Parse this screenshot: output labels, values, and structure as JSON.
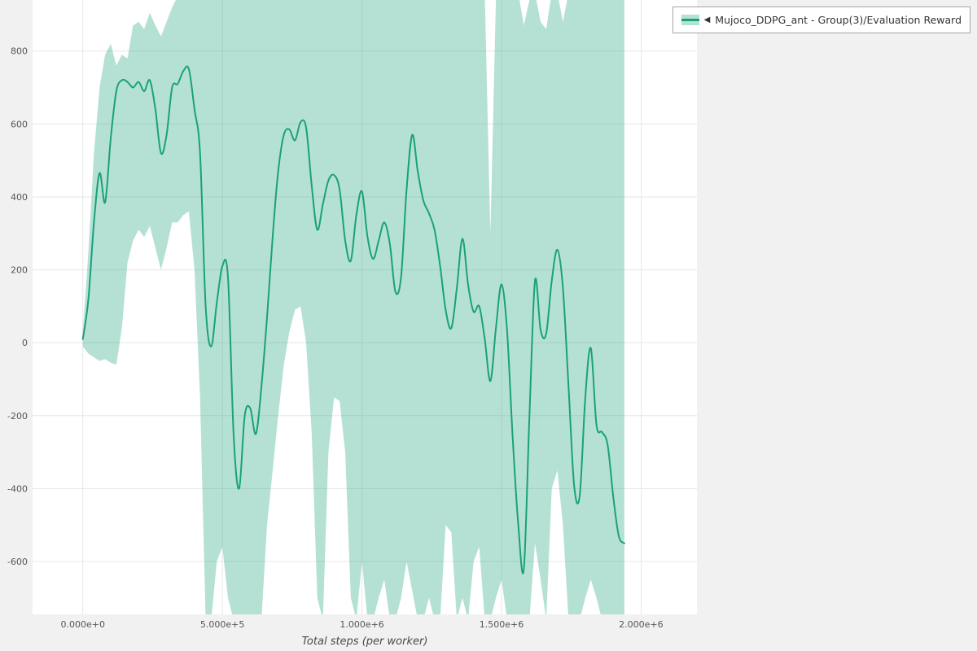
{
  "page": {
    "background": "#f1f1f2"
  },
  "legend": {
    "collapse_icon": "◀",
    "label": "Mujoco_DDPG_ant - Group(3)/Evaluation Reward"
  },
  "chart_data": {
    "type": "line",
    "title": "",
    "xlabel": "Total steps (per worker)",
    "ylabel": "",
    "series_name": "Mujoco_DDPG_ant - Group(3)/Evaluation Reward",
    "x_unit": "steps",
    "x0": 0,
    "dx": 20000,
    "mean": [
      10,
      120,
      330,
      465,
      385,
      560,
      690,
      720,
      715,
      700,
      715,
      690,
      720,
      640,
      520,
      570,
      700,
      710,
      745,
      750,
      640,
      520,
      100,
      -10,
      110,
      210,
      180,
      -250,
      -400,
      -200,
      -180,
      -250,
      -120,
      70,
      290,
      470,
      570,
      585,
      555,
      605,
      590,
      430,
      310,
      380,
      445,
      460,
      420,
      280,
      225,
      350,
      415,
      290,
      230,
      280,
      330,
      270,
      140,
      180,
      420,
      570,
      470,
      390,
      355,
      310,
      210,
      90,
      40,
      150,
      285,
      160,
      85,
      100,
      10,
      -105,
      40,
      160,
      30,
      -260,
      -500,
      -620,
      -200,
      170,
      35,
      25,
      170,
      255,
      150,
      -120,
      -390,
      -420,
      -150,
      -15,
      -225,
      -245,
      -280,
      -420,
      -530,
      -550
    ],
    "band_lower": [
      -10,
      -30,
      -40,
      -50,
      -45,
      -55,
      -60,
      40,
      220,
      280,
      310,
      290,
      320,
      260,
      200,
      260,
      330,
      330,
      350,
      360,
      200,
      -150,
      -760,
      -760,
      -600,
      -560,
      -700,
      -760,
      -760,
      -760,
      -760,
      -760,
      -760,
      -500,
      -350,
      -200,
      -60,
      30,
      90,
      100,
      0,
      -250,
      -700,
      -760,
      -300,
      -150,
      -160,
      -300,
      -700,
      -760,
      -600,
      -760,
      -760,
      -700,
      -650,
      -760,
      -760,
      -700,
      -600,
      -680,
      -760,
      -760,
      -700,
      -760,
      -760,
      -500,
      -520,
      -760,
      -700,
      -760,
      -600,
      -560,
      -760,
      -760,
      -700,
      -650,
      -760,
      -760,
      -760,
      -760,
      -760,
      -550,
      -650,
      -760,
      -400,
      -350,
      -500,
      -760,
      -760,
      -760,
      -700,
      -650,
      -700,
      -760,
      -760,
      -760,
      -760,
      -760
    ],
    "band_upper": [
      30,
      250,
      520,
      700,
      790,
      820,
      760,
      790,
      780,
      870,
      880,
      860,
      905,
      870,
      840,
      880,
      920,
      950,
      960,
      960,
      960,
      960,
      960,
      960,
      960,
      960,
      960,
      960,
      960,
      960,
      960,
      960,
      960,
      960,
      960,
      960,
      960,
      960,
      960,
      960,
      960,
      960,
      960,
      960,
      960,
      960,
      960,
      960,
      960,
      960,
      960,
      960,
      960,
      960,
      960,
      960,
      960,
      960,
      960,
      960,
      960,
      960,
      960,
      960,
      960,
      960,
      960,
      960,
      960,
      960,
      960,
      960,
      960,
      300,
      940,
      960,
      960,
      960,
      960,
      870,
      940,
      960,
      880,
      860,
      960,
      960,
      880,
      960,
      960,
      960,
      960,
      960,
      960,
      960,
      960,
      960,
      960,
      960
    ],
    "xlim": [
      -180000,
      2200000
    ],
    "ylim": [
      -745,
      940
    ],
    "x_ticks": [
      {
        "value": 0,
        "label": "0.000e+0"
      },
      {
        "value": 500000,
        "label": "5.000e+5"
      },
      {
        "value": 1000000,
        "label": "1.000e+6"
      },
      {
        "value": 1500000,
        "label": "1.500e+6"
      },
      {
        "value": 2000000,
        "label": "2.000e+6"
      }
    ],
    "y_ticks": [
      {
        "value": -600,
        "label": "-600"
      },
      {
        "value": -400,
        "label": "-400"
      },
      {
        "value": -200,
        "label": "-200"
      },
      {
        "value": 0,
        "label": "0"
      },
      {
        "value": 200,
        "label": "200"
      },
      {
        "value": 400,
        "label": "400"
      },
      {
        "value": 600,
        "label": "600"
      },
      {
        "value": 800,
        "label": "800"
      }
    ],
    "grid": true,
    "legend_position": "top-right-outside",
    "colors": {
      "line": "#1aa179",
      "band": "#1aa179",
      "band_opacity": 0.32,
      "grid": "#e7e7e7",
      "panel": "#ffffff",
      "tick_text": "#555555",
      "label_text": "#4a4a4a"
    }
  }
}
